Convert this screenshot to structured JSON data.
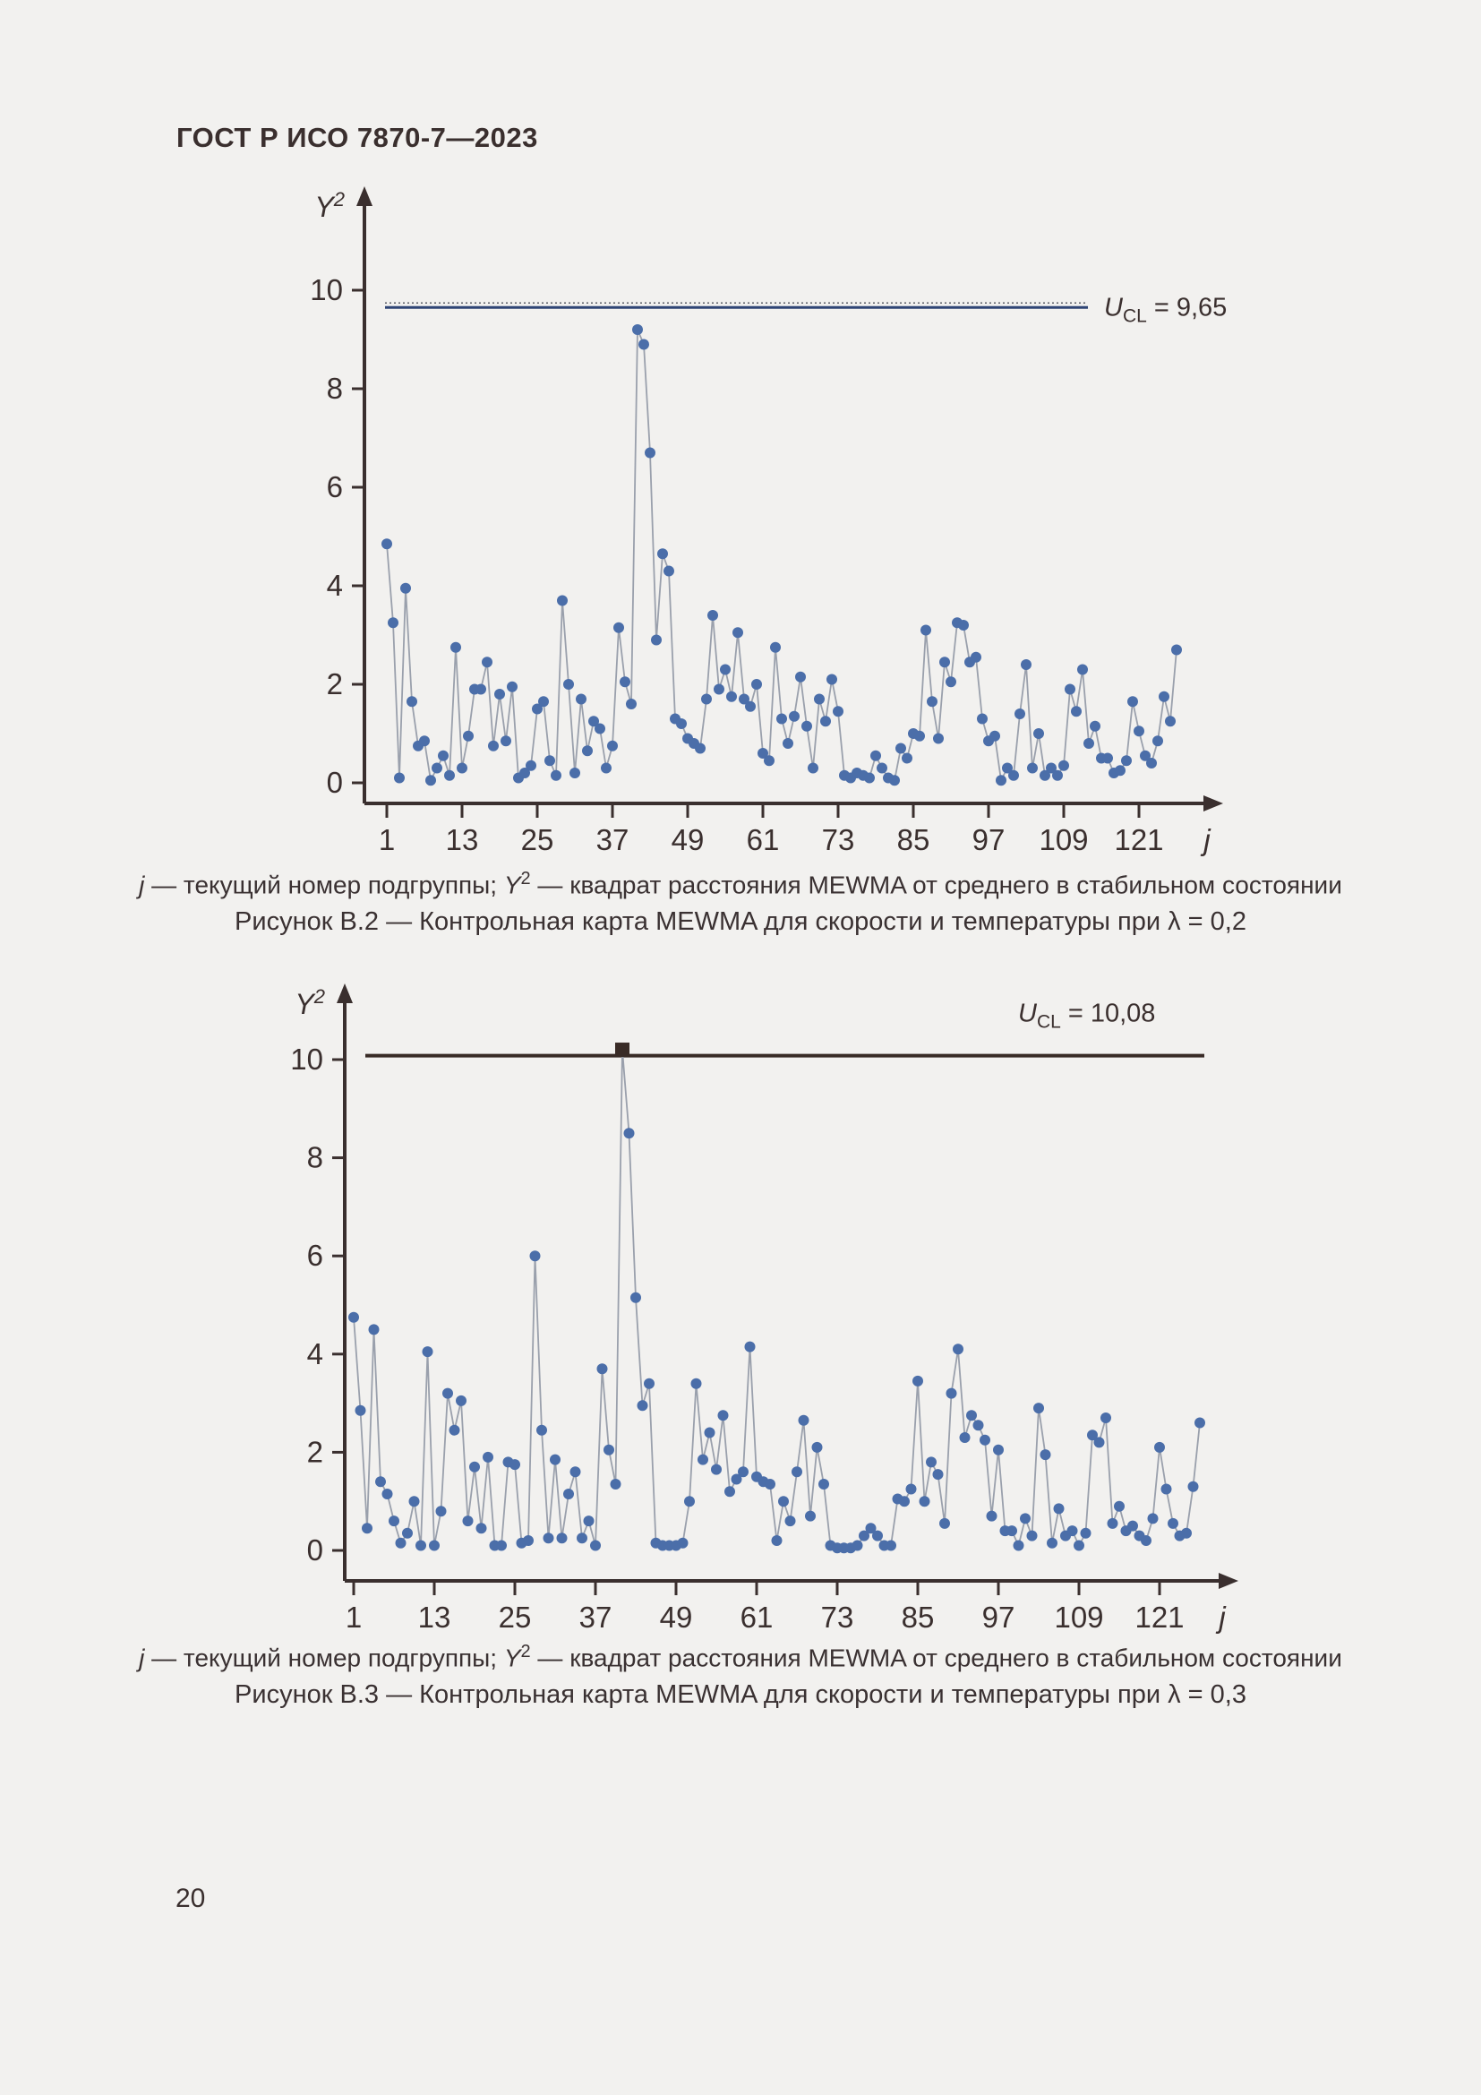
{
  "page": {
    "header": "ГОСТ Р ИСО 7870-7—2023",
    "page_number": "20"
  },
  "figures": [
    {
      "note": {
        "j": "j",
        "seg1": " — текущий номер подгруппы; ",
        "y": "Y",
        "sup": "2",
        "seg2": " — квадрат расстояния MEWMA от среднего в стабильном состоянии"
      },
      "caption": "Рисунок В.2 — Контрольная карта MEWMA для скорости и температуры при λ = 0,2"
    },
    {
      "note": {
        "j": "j",
        "seg1": " — текущий номер подгруппы; ",
        "y": "Y",
        "sup": "2",
        "seg2": " — квадрат расстояния MEWMA от среднего в стабильном состоянии"
      },
      "caption": "Рисунок В.3 — Контрольная карта MEWMA для скорости и температуры при λ = 0,3"
    }
  ],
  "chart_data": [
    {
      "type": "line",
      "title": "Контрольная карта MEWMA для скорости и температуры при λ = 0,2",
      "xlabel": "j",
      "ylabel": "Y",
      "ylabel_sup": "2",
      "lambda": "0,2",
      "x_ticks": [
        1,
        13,
        25,
        37,
        49,
        61,
        73,
        85,
        97,
        109,
        121
      ],
      "y_ticks": [
        0,
        2,
        4,
        6,
        8,
        10
      ],
      "ylim": [
        0,
        11.5
      ],
      "j_start": 1,
      "j_step": 1,
      "ucl": {
        "value": 9.65,
        "u": "U",
        "sub": "CL",
        "eq": " = 9,65",
        "position": "right"
      },
      "values": [
        4.85,
        3.25,
        0.1,
        3.95,
        1.65,
        0.75,
        0.85,
        0.05,
        0.3,
        0.55,
        0.15,
        2.75,
        0.3,
        0.95,
        1.9,
        1.9,
        2.45,
        0.75,
        1.8,
        0.85,
        1.95,
        0.1,
        0.2,
        0.35,
        1.5,
        1.65,
        0.45,
        0.15,
        3.7,
        2.0,
        0.2,
        1.7,
        0.65,
        1.25,
        1.1,
        0.3,
        0.75,
        3.15,
        2.05,
        1.6,
        9.2,
        8.9,
        6.7,
        2.9,
        4.65,
        4.3,
        1.3,
        1.2,
        0.9,
        0.8,
        0.7,
        1.7,
        3.4,
        1.9,
        2.3,
        1.75,
        3.05,
        1.7,
        1.55,
        2.0,
        0.6,
        0.45,
        2.75,
        1.3,
        0.8,
        1.35,
        2.15,
        1.15,
        0.3,
        1.7,
        1.25,
        2.1,
        1.45,
        0.15,
        0.1,
        0.2,
        0.15,
        0.1,
        0.55,
        0.3,
        0.1,
        0.05,
        0.7,
        0.5,
        1.0,
        0.95,
        3.1,
        1.65,
        0.9,
        2.45,
        2.05,
        3.25,
        3.2,
        2.45,
        2.55,
        1.3,
        0.85,
        0.95,
        0.05,
        0.3,
        0.15,
        1.4,
        2.4,
        0.3,
        1.0,
        0.15,
        0.3,
        0.15,
        0.35,
        1.9,
        1.45,
        2.3,
        0.8,
        1.15,
        0.5,
        0.5,
        0.2,
        0.25,
        0.45,
        1.65,
        1.05,
        0.55,
        0.4,
        0.85,
        1.75,
        1.25,
        2.7
      ],
      "out_of_control": [],
      "colors": {
        "marker": "#4b6ea9",
        "segment": "#9aa0ac",
        "ucl_line": "#2f4575",
        "ucl_dots": "#5a5d66",
        "axis": "#3a2f2e"
      }
    },
    {
      "type": "line",
      "title": "Контрольная карта MEWMA для скорости и температуры при λ = 0,3",
      "xlabel": "j",
      "ylabel": "Y",
      "ylabel_sup": "2",
      "lambda": "0,3",
      "x_ticks": [
        1,
        13,
        25,
        37,
        49,
        61,
        73,
        85,
        97,
        109,
        121
      ],
      "y_ticks": [
        0,
        2,
        4,
        6,
        8,
        10
      ],
      "ylim": [
        0,
        11.5
      ],
      "j_start": 1,
      "j_step": 1,
      "ucl": {
        "value": 10.08,
        "u": "U",
        "sub": "CL",
        "eq": " = 10,08",
        "position": "above"
      },
      "values": [
        4.75,
        2.85,
        0.45,
        4.5,
        1.4,
        1.15,
        0.6,
        0.15,
        0.35,
        1.0,
        0.1,
        4.05,
        0.1,
        0.8,
        3.2,
        2.45,
        3.05,
        0.6,
        1.7,
        0.45,
        1.9,
        0.1,
        0.1,
        1.8,
        1.75,
        0.15,
        0.2,
        6.0,
        2.45,
        0.25,
        1.85,
        0.25,
        1.15,
        1.6,
        0.25,
        0.6,
        0.1,
        3.7,
        2.05,
        1.35,
        10.2,
        8.5,
        5.15,
        2.95,
        3.4,
        0.15,
        0.1,
        0.1,
        0.1,
        0.15,
        1.0,
        3.4,
        1.85,
        2.4,
        1.65,
        2.75,
        1.2,
        1.45,
        1.6,
        4.15,
        1.5,
        1.4,
        1.35,
        0.2,
        1.0,
        0.6,
        1.6,
        2.65,
        0.7,
        2.1,
        1.35,
        0.1,
        0.05,
        0.05,
        0.05,
        0.1,
        0.3,
        0.45,
        0.3,
        0.1,
        0.1,
        1.05,
        1.0,
        1.25,
        3.45,
        1.0,
        1.8,
        1.55,
        0.55,
        3.2,
        4.1,
        2.3,
        2.75,
        2.55,
        2.25,
        0.7,
        2.05,
        0.4,
        0.4,
        0.1,
        0.65,
        0.3,
        2.9,
        1.95,
        0.15,
        0.85,
        0.3,
        0.4,
        0.1,
        0.35,
        2.35,
        2.2,
        2.7,
        0.55,
        0.9,
        0.4,
        0.5,
        0.3,
        0.2,
        0.65,
        2.1,
        1.25,
        0.55,
        0.3,
        0.35,
        1.3,
        2.6
      ],
      "out_of_control": [
        {
          "index": 40,
          "j": 41,
          "value": 10.2,
          "marker": "square"
        }
      ],
      "colors": {
        "marker": "#4b6ea9",
        "segment": "#9aa0ac",
        "ucl_line": "#392b26",
        "square": "#392b26",
        "axis": "#3a2f2e"
      }
    }
  ]
}
